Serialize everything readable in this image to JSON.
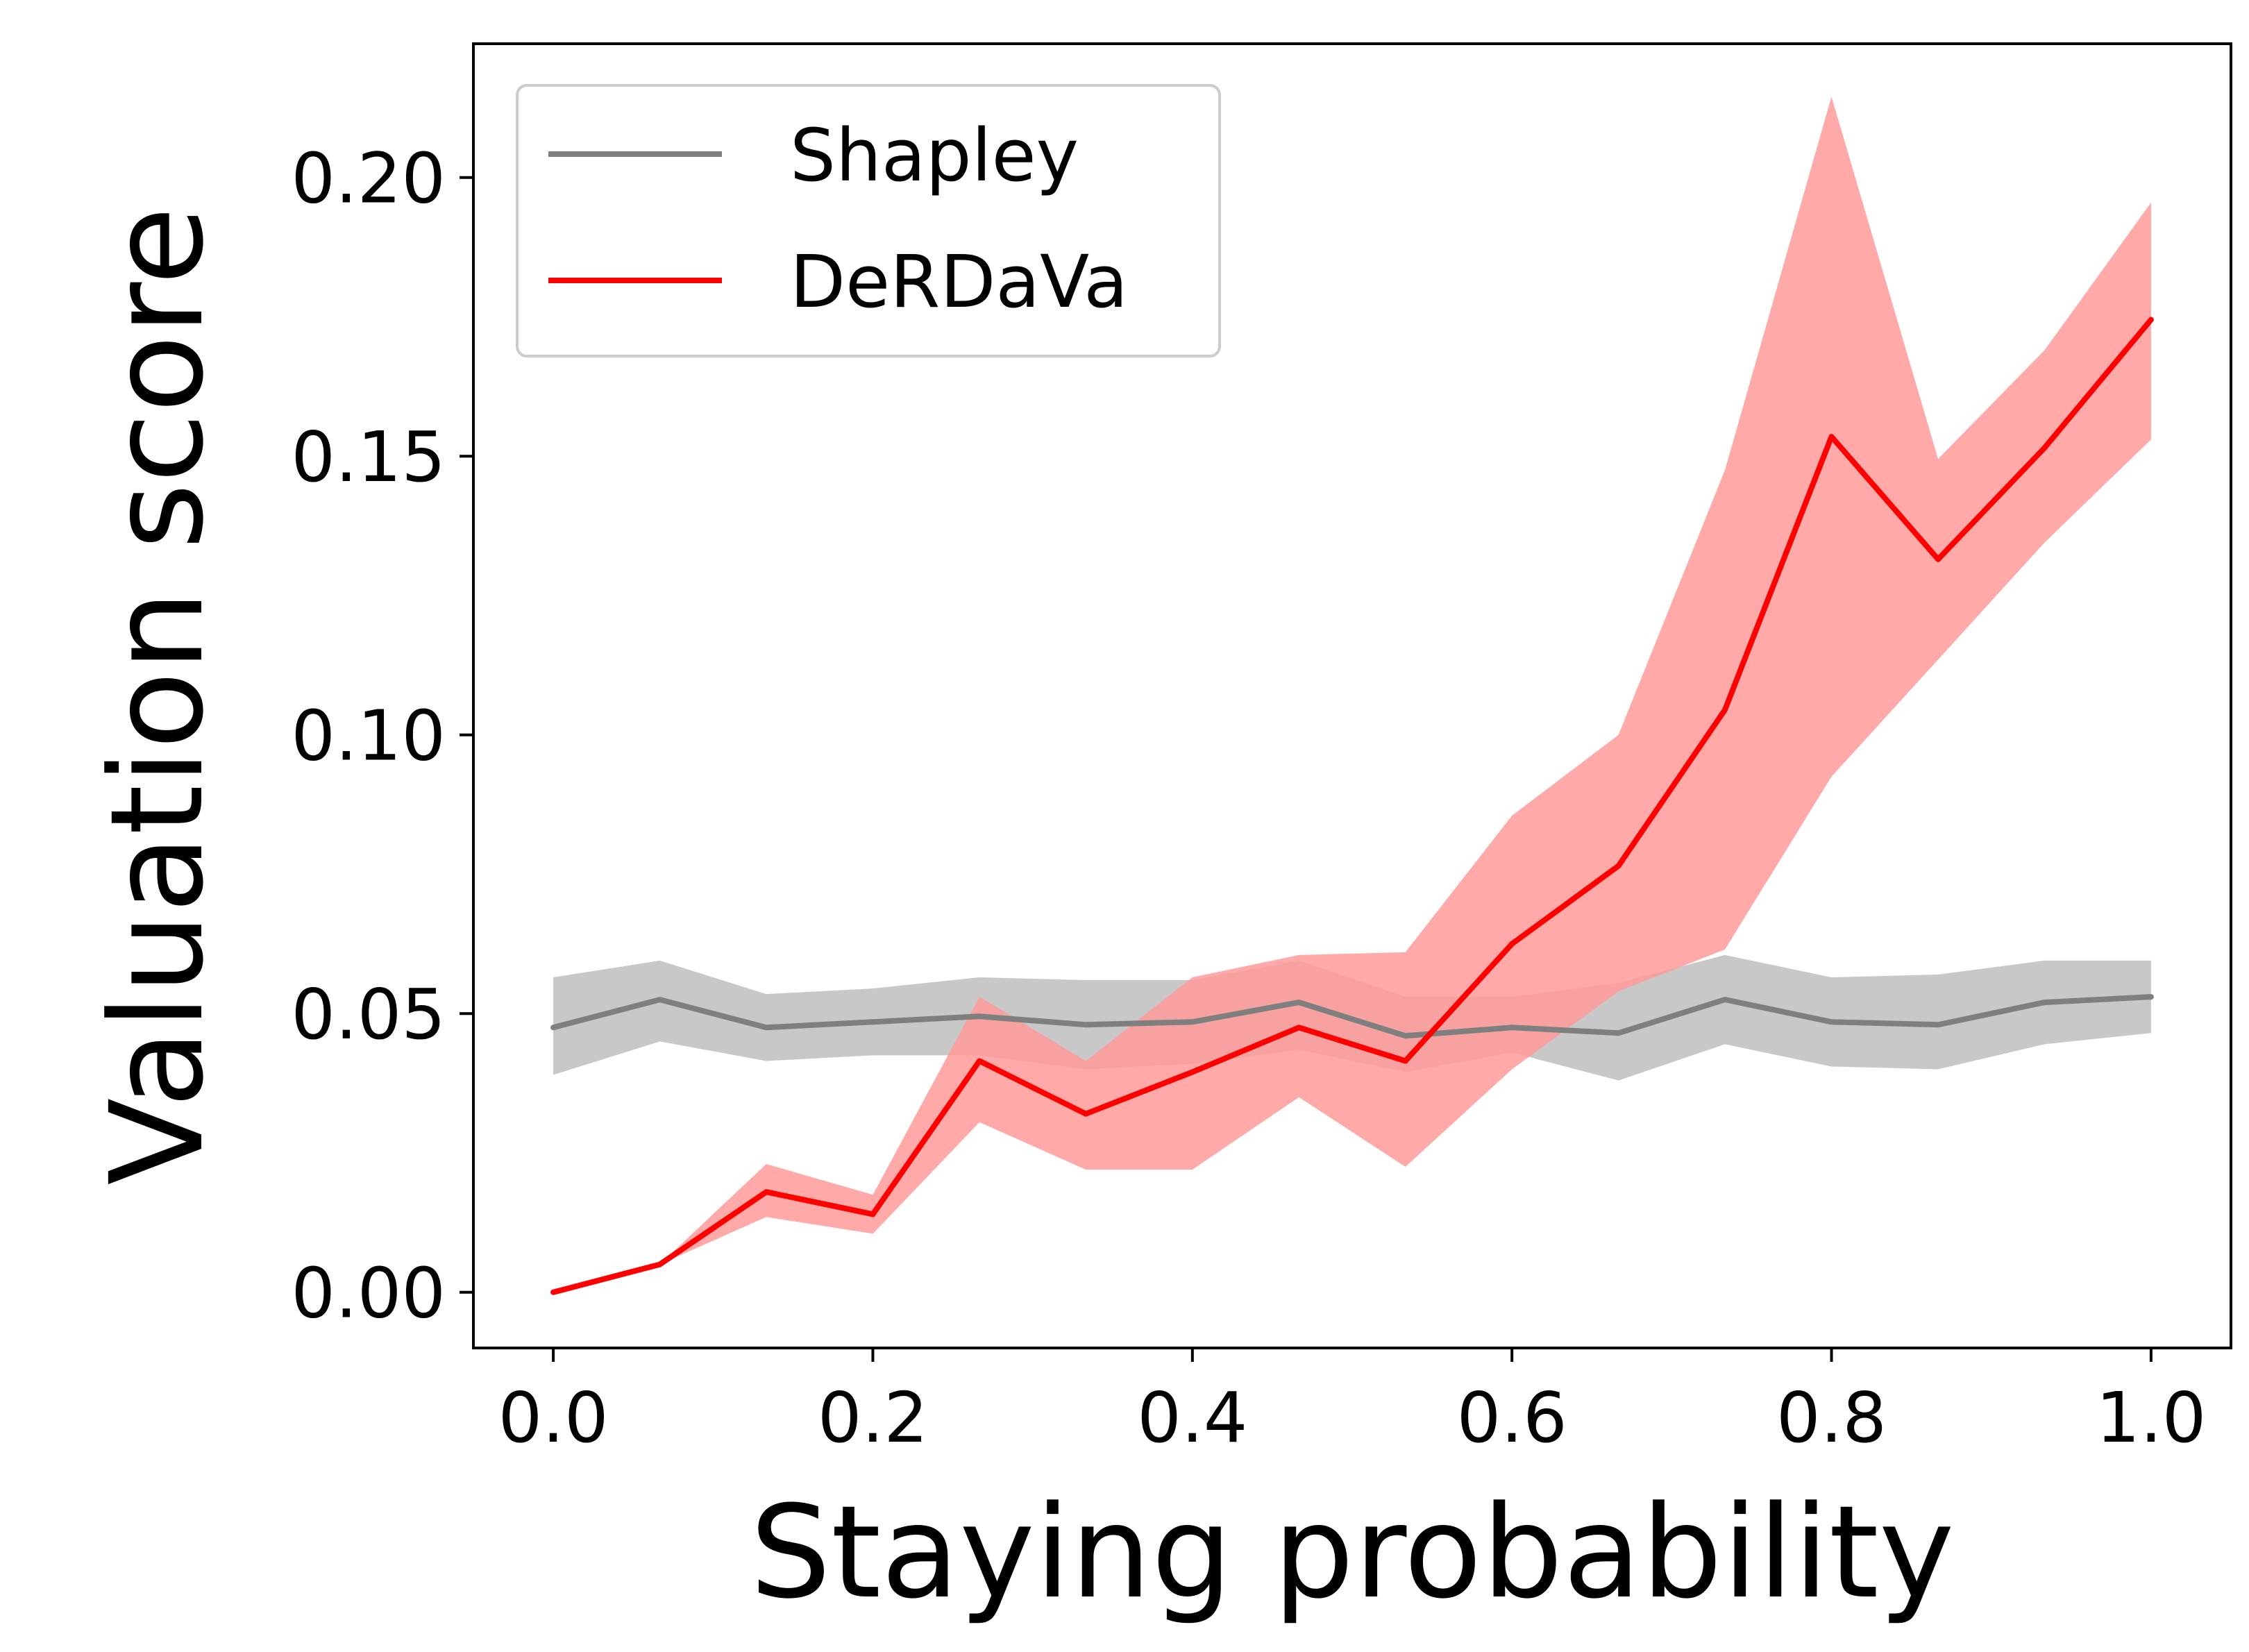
{
  "chart_data": {
    "type": "line",
    "title": "",
    "xlabel": "Staying probability",
    "ylabel": "Valuation score",
    "xlim": [
      -0.05,
      1.05
    ],
    "ylim": [
      -0.01,
      0.224
    ],
    "xticks": [
      0.0,
      0.2,
      0.4,
      0.6,
      0.8,
      1.0
    ],
    "xtick_labels": [
      "0.0",
      "0.2",
      "0.4",
      "0.6",
      "0.8",
      "1.0"
    ],
    "yticks": [
      0.0,
      0.05,
      0.1,
      0.15,
      0.2
    ],
    "ytick_labels": [
      "0.00",
      "0.05",
      "0.10",
      "0.15",
      "0.20"
    ],
    "grid": false,
    "legend_position": "top-left",
    "x": [
      0.0,
      0.0667,
      0.1333,
      0.2,
      0.2667,
      0.3333,
      0.4,
      0.4667,
      0.5333,
      0.6,
      0.6667,
      0.7333,
      0.8,
      0.8667,
      0.9333,
      1.0
    ],
    "series": [
      {
        "name": "Shapley",
        "color": "#7f7f7f",
        "band_color": "#c8c8c8",
        "values": [
          0.0475,
          0.0525,
          0.0475,
          0.0485,
          0.0495,
          0.048,
          0.0485,
          0.052,
          0.046,
          0.0475,
          0.0465,
          0.0525,
          0.0485,
          0.048,
          0.052,
          0.053
        ],
        "lower": [
          0.039,
          0.045,
          0.0415,
          0.0425,
          0.0425,
          0.04,
          0.041,
          0.0435,
          0.0395,
          0.043,
          0.038,
          0.0445,
          0.0405,
          0.04,
          0.0445,
          0.0465
        ],
        "upper": [
          0.0565,
          0.0595,
          0.0535,
          0.0545,
          0.0565,
          0.056,
          0.056,
          0.0595,
          0.053,
          0.053,
          0.0555,
          0.0605,
          0.0565,
          0.057,
          0.0595,
          0.0595
        ]
      },
      {
        "name": "DeRDaVa",
        "color": "#ff0000",
        "band_color": "#ff9a9a",
        "values": [
          0.0,
          0.005,
          0.018,
          0.014,
          0.0415,
          0.032,
          0.0395,
          0.0475,
          0.0415,
          0.0625,
          0.0765,
          0.1045,
          0.1535,
          0.1315,
          0.1515,
          0.1745
        ],
        "lower": [
          0.0,
          0.005,
          0.0135,
          0.0105,
          0.0305,
          0.022,
          0.022,
          0.035,
          0.0225,
          0.04,
          0.054,
          0.0615,
          0.0925,
          0.1135,
          0.1345,
          0.153
        ],
        "upper": [
          0.0,
          0.005,
          0.023,
          0.0175,
          0.053,
          0.0415,
          0.0565,
          0.0605,
          0.061,
          0.0855,
          0.1,
          0.1475,
          0.2145,
          0.1495,
          0.169,
          0.1955
        ]
      }
    ]
  }
}
